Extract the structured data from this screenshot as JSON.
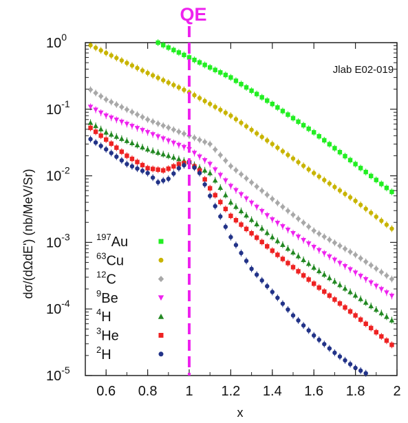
{
  "chart_data": {
    "type": "scatter",
    "xlabel": "x",
    "ylabel": "dσ/(dΩdE') (nb/MeV/Sr)",
    "xlim": [
      0.5,
      2.0
    ],
    "ylim": [
      1e-05,
      1
    ],
    "yscale": "log",
    "grid": false,
    "legend_placement": "bottom-left",
    "x_ticks": [
      {
        "value": 0.6,
        "label": "0.6"
      },
      {
        "value": 0.8,
        "label": "0.8"
      },
      {
        "value": 1.0,
        "label": "1"
      },
      {
        "value": 1.2,
        "label": "1.2"
      },
      {
        "value": 1.4,
        "label": "1.4"
      },
      {
        "value": 1.6,
        "label": "1.6"
      },
      {
        "value": 1.8,
        "label": "1.8"
      },
      {
        "value": 2.0,
        "label": "2"
      }
    ],
    "y_ticks": [
      {
        "value": 1,
        "base": "10",
        "exp": "0"
      },
      {
        "value": 0.1,
        "base": "10",
        "exp": "-1"
      },
      {
        "value": 0.01,
        "base": "10",
        "exp": "-2"
      },
      {
        "value": 0.001,
        "base": "10",
        "exp": "-3"
      },
      {
        "value": 0.0001,
        "base": "10",
        "exp": "-4"
      },
      {
        "value": 1e-05,
        "base": "10",
        "exp": "-5"
      }
    ],
    "annotations": {
      "experiment": "Jlab E02-019",
      "qe_label": "QE",
      "qe_x": 1.0,
      "qe_color": "#ee22ee"
    },
    "series": [
      {
        "iso_mass": "197",
        "iso_sym": "Au",
        "color": "#22ee22",
        "marker": "square",
        "points": [
          [
            0.85,
            1.0
          ],
          [
            1.0,
            0.6
          ],
          [
            1.2,
            0.3
          ],
          [
            1.4,
            0.12
          ],
          [
            1.6,
            0.045
          ],
          [
            1.8,
            0.015
          ],
          [
            2.0,
            0.005
          ]
        ]
      },
      {
        "iso_mass": "63",
        "iso_sym": "Cu",
        "color": "#c8b400",
        "marker": "circle",
        "points": [
          [
            0.5,
            1.0
          ],
          [
            0.6,
            0.7
          ],
          [
            0.8,
            0.35
          ],
          [
            1.0,
            0.18
          ],
          [
            1.2,
            0.08
          ],
          [
            1.4,
            0.03
          ],
          [
            1.6,
            0.011
          ],
          [
            1.8,
            0.0042
          ],
          [
            2.0,
            0.0014
          ]
        ]
      },
      {
        "iso_mass": "12",
        "iso_sym": "C",
        "color": "#a8a8a8",
        "marker": "diamond",
        "points": [
          [
            0.5,
            0.22
          ],
          [
            0.6,
            0.14
          ],
          [
            0.8,
            0.07
          ],
          [
            1.0,
            0.04
          ],
          [
            1.1,
            0.03
          ],
          [
            1.2,
            0.014
          ],
          [
            1.4,
            0.0045
          ],
          [
            1.6,
            0.0015
          ],
          [
            1.8,
            0.00065
          ],
          [
            2.0,
            0.00025
          ]
        ]
      },
      {
        "iso_mass": "9",
        "iso_sym": "Be",
        "color": "#ee22ee",
        "marker": "triangle-down",
        "points": [
          [
            0.5,
            0.12
          ],
          [
            0.6,
            0.08
          ],
          [
            0.8,
            0.045
          ],
          [
            1.0,
            0.025
          ],
          [
            1.1,
            0.015
          ],
          [
            1.2,
            0.007
          ],
          [
            1.4,
            0.0022
          ],
          [
            1.6,
            0.00085
          ],
          [
            1.8,
            0.00035
          ],
          [
            2.0,
            0.00014
          ]
        ]
      },
      {
        "iso_mass": "4",
        "iso_sym": "H",
        "color": "#228822",
        "marker": "triangle-up",
        "points": [
          [
            0.5,
            0.07
          ],
          [
            0.6,
            0.045
          ],
          [
            0.8,
            0.025
          ],
          [
            0.9,
            0.02
          ],
          [
            1.0,
            0.016
          ],
          [
            1.1,
            0.011
          ],
          [
            1.2,
            0.004
          ],
          [
            1.4,
            0.0012
          ],
          [
            1.6,
            0.00042
          ],
          [
            1.8,
            0.00016
          ],
          [
            2.0,
            6e-05
          ]
        ]
      },
      {
        "iso_mass": "3",
        "iso_sym": "He",
        "color": "#ee2222",
        "marker": "square",
        "points": [
          [
            0.5,
            0.06
          ],
          [
            0.6,
            0.035
          ],
          [
            0.7,
            0.02
          ],
          [
            0.8,
            0.013
          ],
          [
            0.88,
            0.012
          ],
          [
            0.95,
            0.015
          ],
          [
            1.0,
            0.016
          ],
          [
            1.05,
            0.012
          ],
          [
            1.1,
            0.0065
          ],
          [
            1.2,
            0.0025
          ],
          [
            1.4,
            0.00075
          ],
          [
            1.6,
            0.00024
          ],
          [
            1.8,
            8e-05
          ],
          [
            2.0,
            2.5e-05
          ]
        ]
      },
      {
        "iso_mass": "2",
        "iso_sym": "H",
        "color": "#223388",
        "marker": "circle",
        "points": [
          [
            0.5,
            0.04
          ],
          [
            0.6,
            0.025
          ],
          [
            0.7,
            0.015
          ],
          [
            0.8,
            0.011
          ],
          [
            0.85,
            0.008
          ],
          [
            0.9,
            0.009
          ],
          [
            0.95,
            0.013
          ],
          [
            1.0,
            0.016
          ],
          [
            1.05,
            0.011
          ],
          [
            1.1,
            0.005
          ],
          [
            1.2,
            0.0012
          ],
          [
            1.3,
            0.0004
          ],
          [
            1.4,
            0.00018
          ],
          [
            1.5,
            8e-05
          ],
          [
            1.6,
            4e-05
          ],
          [
            1.7,
            2.2e-05
          ],
          [
            1.8,
            1.3e-05
          ],
          [
            1.9,
            9e-06
          ]
        ]
      }
    ]
  }
}
